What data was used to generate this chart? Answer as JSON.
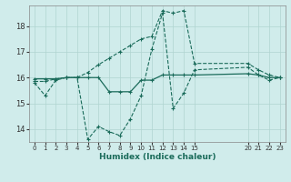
{
  "xlabel": "Humidex (Indice chaleur)",
  "background_color": "#d0eceb",
  "grid_color": "#b0d4d0",
  "line_color": "#1a6b5a",
  "series": {
    "line1_x": [
      0,
      1,
      2,
      3,
      4,
      5,
      6,
      7,
      8,
      9,
      10,
      11,
      12,
      13,
      14,
      15,
      20,
      21,
      22,
      23
    ],
    "line1_y": [
      15.8,
      15.3,
      15.9,
      16.0,
      16.0,
      13.6,
      14.1,
      13.9,
      13.75,
      14.4,
      15.3,
      17.1,
      18.5,
      14.8,
      15.4,
      16.3,
      16.4,
      16.1,
      15.9,
      16.0
    ],
    "line2_x": [
      0,
      1,
      2,
      3,
      4,
      5,
      6,
      7,
      8,
      9,
      10,
      11,
      12,
      13,
      14,
      15,
      20,
      21,
      22,
      23
    ],
    "line2_y": [
      15.95,
      15.95,
      15.95,
      16.0,
      16.0,
      16.0,
      16.0,
      15.45,
      15.45,
      15.45,
      15.9,
      15.9,
      16.1,
      16.1,
      16.1,
      16.1,
      16.15,
      16.1,
      16.0,
      16.0
    ],
    "line3_x": [
      0,
      1,
      2,
      3,
      4,
      5,
      6,
      7,
      8,
      9,
      10,
      11,
      12,
      13,
      14,
      15,
      20,
      21,
      22,
      23
    ],
    "line3_y": [
      15.85,
      15.85,
      15.95,
      16.0,
      16.0,
      16.2,
      16.5,
      16.75,
      17.0,
      17.25,
      17.5,
      17.6,
      18.6,
      18.5,
      18.6,
      16.55,
      16.55,
      16.3,
      16.1,
      16.0
    ]
  },
  "xlim": [
    -0.5,
    23.5
  ],
  "ylim": [
    13.5,
    18.8
  ],
  "yticks": [
    14,
    15,
    16,
    17,
    18
  ],
  "xticks": [
    0,
    1,
    2,
    3,
    4,
    5,
    6,
    7,
    8,
    9,
    10,
    11,
    12,
    13,
    14,
    15,
    20,
    21,
    22,
    23
  ],
  "xtick_labels": [
    "0",
    "1",
    "2",
    "3",
    "4",
    "5",
    "6",
    "7",
    "8",
    "9",
    "10",
    "11",
    "12",
    "13",
    "14",
    "15",
    "20",
    "21",
    "22",
    "23"
  ]
}
